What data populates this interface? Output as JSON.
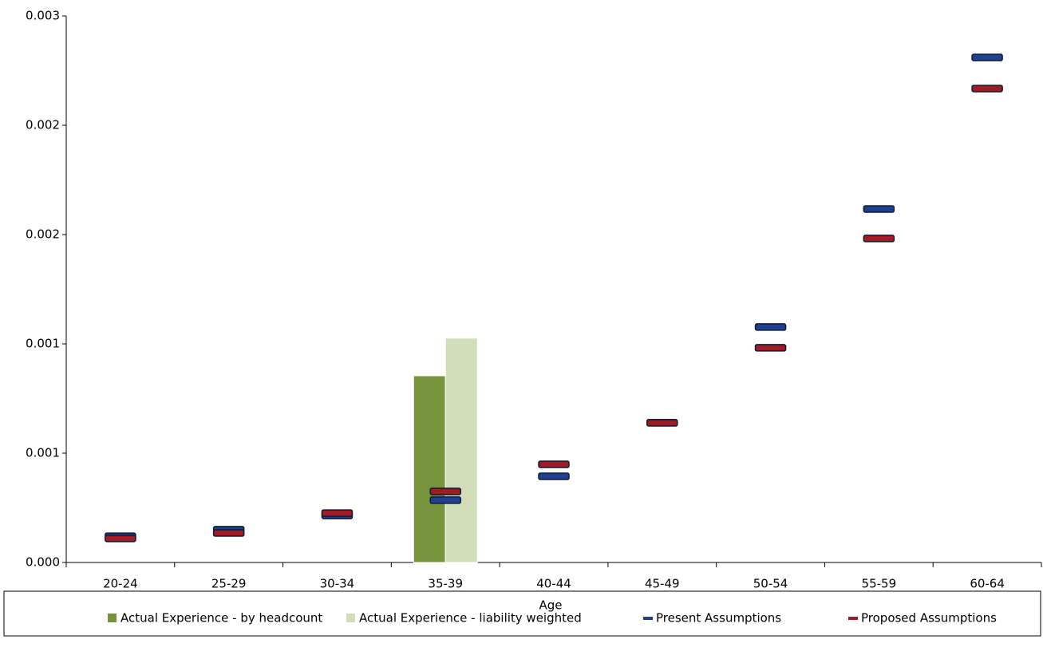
{
  "chart_data": {
    "type": "bar",
    "x_label": "Age",
    "categories": [
      "20-24",
      "25-29",
      "30-34",
      "35-39",
      "40-44",
      "45-49",
      "50-54",
      "55-59",
      "60-64"
    ],
    "series": [
      {
        "name": "Actual Experience - by headcount",
        "type": "bar",
        "color": "#77933c",
        "values": [
          null,
          null,
          null,
          0.000854,
          null,
          null,
          null,
          null,
          null
        ]
      },
      {
        "name": "Actual Experience - liability weighted",
        "type": "bar",
        "color": "#d0ddb8",
        "values": [
          null,
          null,
          null,
          0.001026,
          null,
          null,
          null,
          null,
          null
        ]
      },
      {
        "name": "Present Assumptions",
        "type": "marker",
        "color": "#1f3f8f",
        "values": [
          0.00012,
          0.00015,
          0.000215,
          0.000285,
          0.000394,
          0.000639,
          0.001077,
          0.001617,
          0.00231
        ]
      },
      {
        "name": "Proposed Assumptions",
        "type": "marker",
        "color": "#a01c24",
        "values": [
          0.00011,
          0.000135,
          0.000226,
          0.000325,
          0.000449,
          0.000639,
          0.000982,
          0.001482,
          0.002168
        ]
      }
    ],
    "ylim": [
      0,
      0.0025
    ],
    "yticks": [
      {
        "value": 0,
        "label": "0.000"
      },
      {
        "value": 0.0005,
        "label": "0.001"
      },
      {
        "value": 0.001,
        "label": "0.001"
      },
      {
        "value": 0.0015,
        "label": "0.002"
      },
      {
        "value": 0.002,
        "label": "0.002"
      },
      {
        "value": 0.0025,
        "label": "0.003"
      }
    ],
    "grid": false,
    "legend": "bottom"
  }
}
